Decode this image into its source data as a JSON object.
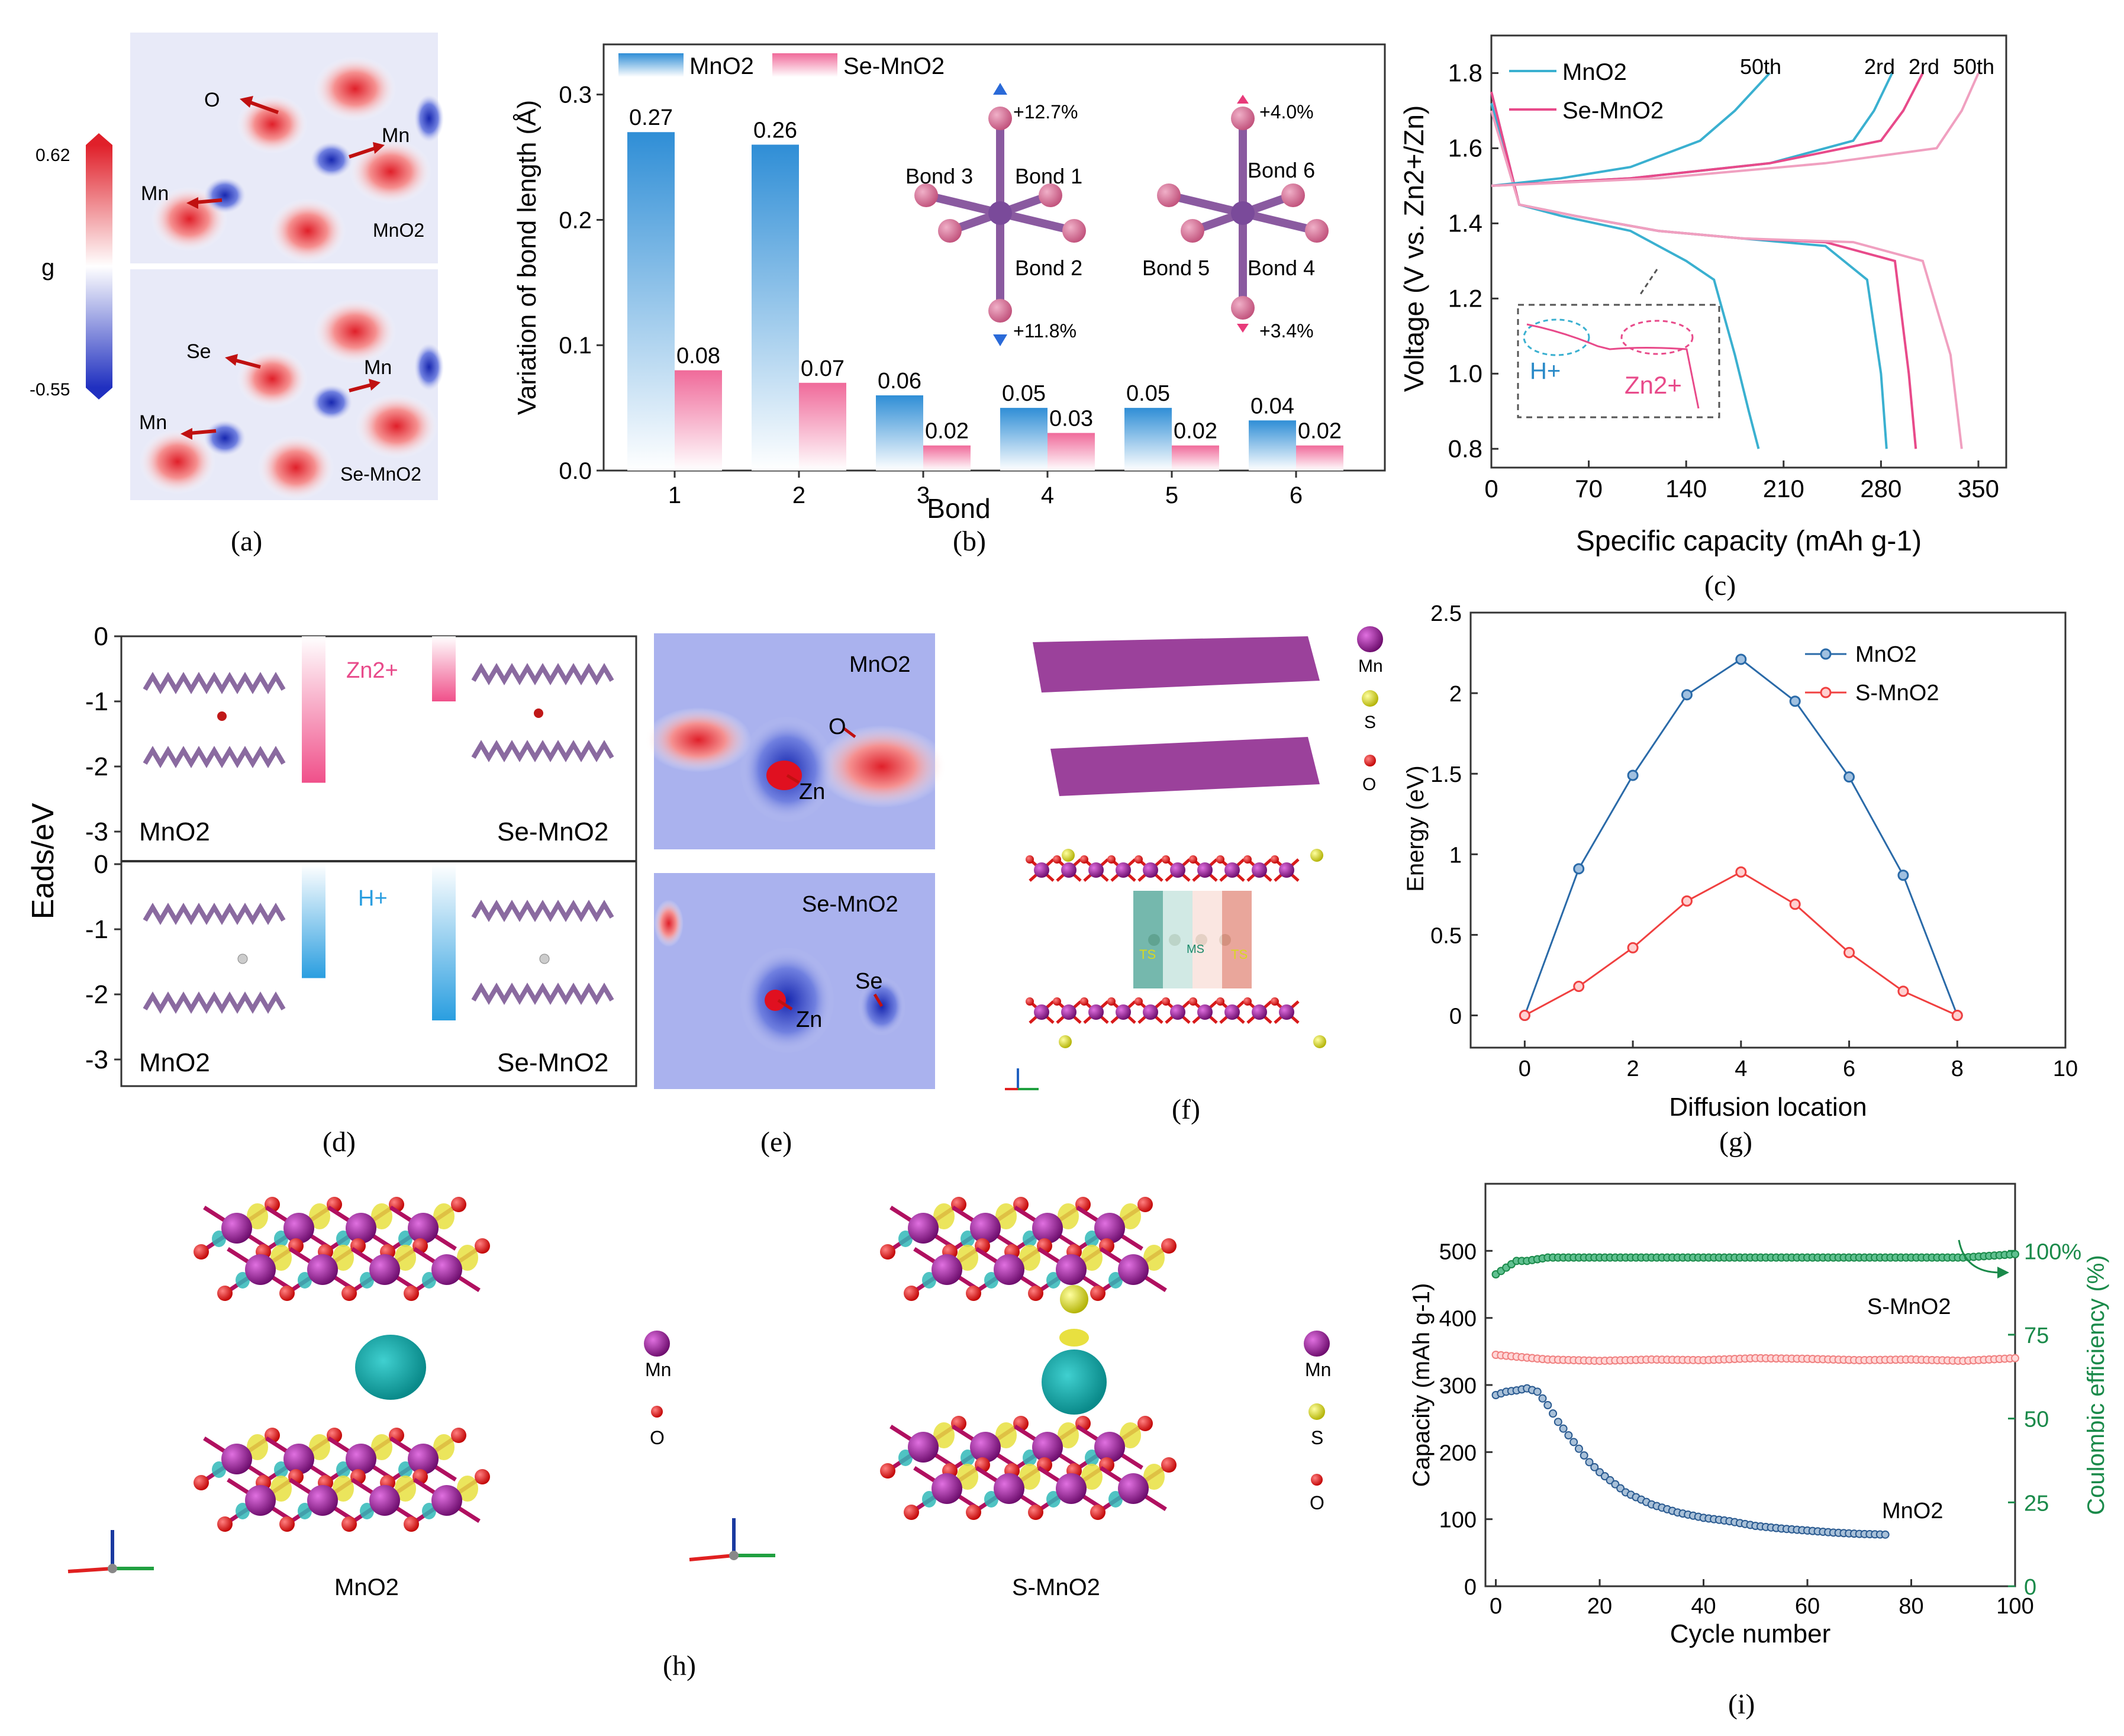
{
  "panel_labels": [
    "(a)",
    "(b)",
    "(c)",
    "(d)",
    "(e)",
    "(f)",
    "(g)",
    "(h)",
    "(i)"
  ],
  "colors": {
    "mno2_blue": "#2f8ed6",
    "se_pink": "#e8508a",
    "deformation_red": "#e0202a",
    "deformation_blue": "#2030c0",
    "mn_purple": "#8b1a8b",
    "o_red": "#e02020",
    "s_yellow": "#d8d820",
    "cyc_green": "#1a8a4a",
    "cyc_pink": "#f08080",
    "cyc_blue": "#2a5a90",
    "g_blue": "#2a6aa8",
    "g_red": "#f04040"
  },
  "panel_a": {
    "colorbar_max": "0.62",
    "colorbar_min": "-0.55",
    "colorbar_label": "g",
    "top_labels": [
      "O",
      "Mn",
      "Mn",
      "MnO2"
    ],
    "bottom_labels": [
      "Se",
      "Mn",
      "Mn",
      "Se-MnO2"
    ]
  },
  "panel_b": {
    "chart_data": {
      "type": "bar",
      "xlabel": "Bond",
      "ylabel": "Variation of bond length (Å)",
      "ylim": [
        0,
        0.34
      ],
      "yticks": [
        "0.0",
        "0.1",
        "0.2",
        "0.3"
      ],
      "categories": [
        "1",
        "2",
        "3",
        "4",
        "5",
        "6"
      ],
      "series": [
        {
          "name": "MnO2",
          "values": [
            0.27,
            0.26,
            0.06,
            0.05,
            0.05,
            0.04
          ],
          "labels": [
            "0.27",
            "0.26",
            "0.06",
            "0.05",
            "0.05",
            "0.04"
          ]
        },
        {
          "name": "Se-MnO2",
          "values": [
            0.08,
            0.07,
            0.02,
            0.03,
            0.02,
            0.02
          ],
          "labels": [
            "0.08",
            "0.07",
            "0.02",
            "0.03",
            "0.02",
            "0.02"
          ]
        }
      ],
      "legend": [
        "MnO2",
        "Se-MnO2"
      ],
      "annotations": [
        "+12.7%",
        "Bond 3",
        "Bond 1",
        "Bond 2",
        "+11.8%",
        "+4.0%",
        "Bond 6",
        "Bond 5",
        "Bond 4",
        "+3.4%"
      ]
    }
  },
  "panel_c": {
    "chart_data": {
      "type": "line",
      "xlabel": "Specific capacity (mAh g-1)",
      "ylabel": "Voltage (V vs. Zn2+/Zn)",
      "xlim": [
        0,
        370
      ],
      "ylim": [
        0.75,
        1.9
      ],
      "xticks": [
        "0",
        "70",
        "140",
        "210",
        "280",
        "350"
      ],
      "yticks": [
        "0.8",
        "1.0",
        "1.2",
        "1.4",
        "1.6",
        "1.8"
      ],
      "series": [
        {
          "name": "MnO2",
          "x": [
            0,
            20,
            50,
            100,
            140,
            160,
            175,
            185,
            192
          ],
          "y": [
            1.72,
            1.45,
            1.42,
            1.38,
            1.3,
            1.25,
            1.05,
            0.9,
            0.8
          ]
        },
        {
          "name": "MnO2",
          "x": [
            0,
            20,
            60,
            120,
            180,
            240,
            270,
            280,
            284
          ],
          "y": [
            1.75,
            1.45,
            1.42,
            1.38,
            1.36,
            1.34,
            1.25,
            1.0,
            0.8
          ]
        },
        {
          "name": "Se-MnO2",
          "x": [
            0,
            20,
            60,
            120,
            180,
            240,
            290,
            300,
            305
          ],
          "y": [
            1.75,
            1.45,
            1.42,
            1.38,
            1.36,
            1.35,
            1.3,
            1.0,
            0.8
          ]
        },
        {
          "name": "Se-MnO2",
          "x": [
            0,
            20,
            60,
            120,
            180,
            260,
            310,
            330,
            338
          ],
          "y": [
            1.7,
            1.45,
            1.42,
            1.38,
            1.36,
            1.35,
            1.3,
            1.05,
            0.8
          ]
        },
        {
          "name": "MnO2",
          "x": [
            0,
            50,
            100,
            150,
            175,
            200
          ],
          "y": [
            1.5,
            1.52,
            1.55,
            1.62,
            1.7,
            1.8
          ]
        },
        {
          "name": "MnO2",
          "x": [
            0,
            100,
            200,
            260,
            275,
            288
          ],
          "y": [
            1.5,
            1.52,
            1.56,
            1.62,
            1.7,
            1.8
          ]
        },
        {
          "name": "Se-MnO2",
          "x": [
            0,
            100,
            200,
            280,
            296,
            310
          ],
          "y": [
            1.5,
            1.52,
            1.56,
            1.62,
            1.7,
            1.8
          ]
        },
        {
          "name": "Se-MnO2",
          "x": [
            0,
            120,
            240,
            320,
            338,
            350
          ],
          "y": [
            1.5,
            1.52,
            1.56,
            1.6,
            1.7,
            1.8
          ]
        }
      ],
      "legend": [
        "MnO2",
        "Se-MnO2"
      ],
      "annotations": [
        "50th",
        "2rd",
        "2rd",
        "50th",
        "H+",
        "Zn2+"
      ]
    }
  },
  "panel_d": {
    "ylabel": "Eads/eV",
    "yticks_top": [
      "0",
      "-1",
      "-2",
      "-3"
    ],
    "yticks_bottom": [
      "0",
      "-1",
      "-2",
      "-3"
    ],
    "top": {
      "ion": "Zn2+",
      "left_value": -2.25,
      "right_value": -1.0,
      "left_label": "MnO2",
      "right_label": "Se-MnO2"
    },
    "bottom": {
      "ion": "H+",
      "left_value": -1.75,
      "right_value": -2.4,
      "left_label": "MnO2",
      "right_label": "Se-MnO2"
    }
  },
  "panel_e": {
    "top_labels": [
      "MnO2",
      "O",
      "Zn"
    ],
    "bottom_labels": [
      "Se-MnO2",
      "Se",
      "Zn"
    ]
  },
  "panel_f": {
    "legend": [
      "Mn",
      "S",
      "O"
    ],
    "labels": [
      "TS",
      "MS",
      "TS"
    ]
  },
  "panel_g": {
    "chart_data": {
      "type": "line",
      "xlabel": "Diffusion location",
      "ylabel": "Energy (eV)",
      "xlim": [
        -1,
        10
      ],
      "ylim": [
        -0.2,
        2.5
      ],
      "xticks": [
        "0",
        "2",
        "4",
        "6",
        "8",
        "10"
      ],
      "yticks": [
        "0",
        "0.5",
        "1",
        "1.5",
        "2",
        "2.5"
      ],
      "series": [
        {
          "name": "MnO2",
          "x": [
            0,
            1,
            2,
            3,
            4,
            5,
            6,
            7,
            8
          ],
          "y": [
            0,
            0.91,
            1.49,
            1.99,
            2.21,
            1.95,
            1.48,
            0.87,
            0.0
          ]
        },
        {
          "name": "S-MnO2",
          "x": [
            0,
            1,
            2,
            3,
            4,
            5,
            6,
            7,
            8
          ],
          "y": [
            0,
            0.18,
            0.42,
            0.71,
            0.89,
            0.69,
            0.39,
            0.15,
            0.0
          ]
        }
      ],
      "legend": [
        "MnO2",
        "S-MnO2"
      ]
    }
  },
  "panel_h": {
    "left_label": "MnO2",
    "right_label": "S-MnO2",
    "left_legend": [
      "Mn",
      "O"
    ],
    "right_legend": [
      "Mn",
      "S",
      "O"
    ]
  },
  "panel_i": {
    "chart_data": {
      "type": "scatter",
      "xlabel": "Cycle number",
      "ylabel": "Capacity (mAh g-1)",
      "y2label": "Coulombic efficiency (%)",
      "xlim": [
        -2,
        100
      ],
      "ylim": [
        0,
        600
      ],
      "y2lim": [
        0,
        120
      ],
      "xticks": [
        "0",
        "20",
        "40",
        "60",
        "80",
        "100"
      ],
      "yticks": [
        "0",
        "100",
        "200",
        "300",
        "400",
        "500"
      ],
      "y2ticks": [
        "0",
        "25",
        "50",
        "75",
        "100%"
      ],
      "series": [
        {
          "name": "MnO2",
          "x": [
            0,
            2,
            4,
            6,
            8,
            10,
            12,
            15,
            18,
            20,
            25,
            30,
            35,
            40,
            45,
            50,
            55,
            60,
            65,
            70,
            75
          ],
          "y": [
            285,
            290,
            292,
            295,
            290,
            270,
            245,
            215,
            185,
            170,
            140,
            122,
            110,
            102,
            97,
            90,
            86,
            83,
            80,
            78,
            77
          ]
        },
        {
          "name": "S-MnO2",
          "x": [
            0,
            10,
            20,
            30,
            40,
            50,
            60,
            70,
            80,
            90,
            100
          ],
          "y": [
            345,
            338,
            336,
            338,
            337,
            340,
            339,
            337,
            338,
            336,
            340
          ]
        },
        {
          "name": "S-MnO2 CE",
          "x": [
            0,
            2,
            4,
            6,
            10,
            20,
            30,
            40,
            50,
            60,
            70,
            80,
            90,
            100
          ],
          "y": [
            93,
            95,
            97,
            97,
            98,
            98,
            98,
            98,
            98,
            98,
            98,
            98,
            98,
            99
          ]
        }
      ],
      "annotations": [
        "S-MnO2",
        "MnO2"
      ]
    }
  }
}
